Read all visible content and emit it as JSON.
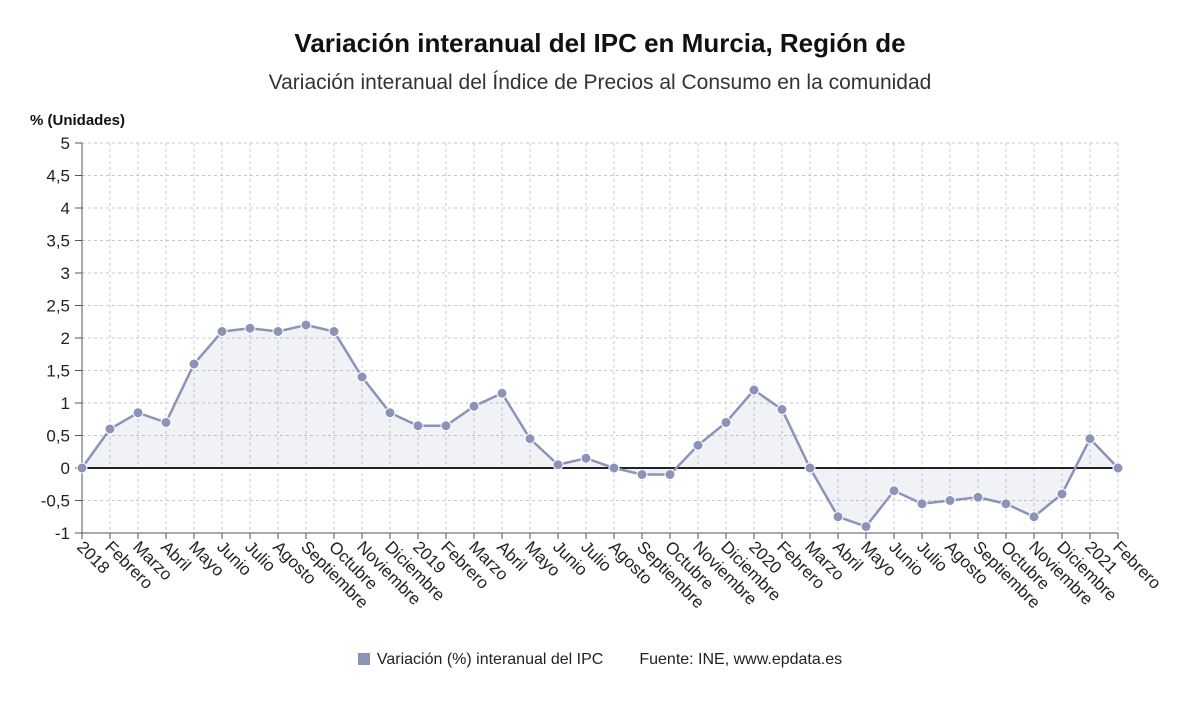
{
  "chart_data": {
    "type": "line",
    "title": "Variación interanual del IPC en Murcia, Región de",
    "subtitle": "Variación interanual del Índice de Precios al Consumo en la comunidad",
    "ylabel": "% (Unidades)",
    "xlabel": "",
    "ylim": [
      -1,
      5
    ],
    "yticks": [
      5,
      4.5,
      4,
      3.5,
      3,
      2.5,
      2,
      1.5,
      1,
      0.5,
      0,
      -0.5,
      -1
    ],
    "ytick_labels": [
      "5",
      "4,5",
      "4",
      "3,5",
      "3",
      "2,5",
      "2",
      "1,5",
      "1",
      "0,5",
      "0",
      "-0,5",
      "-1"
    ],
    "grid": true,
    "legend_position": "bottom",
    "categories": [
      "2018",
      "Febrero",
      "Marzo",
      "Abril",
      "Mayo",
      "Junio",
      "Julio",
      "Agosto",
      "Septiembre",
      "Octubre",
      "Noviembre",
      "Diciembre",
      "2019",
      "Febrero",
      "Marzo",
      "Abril",
      "Mayo",
      "Junio",
      "Julio",
      "Agosto",
      "Septiembre",
      "Octubre",
      "Noviembre",
      "Diciembre",
      "2020",
      "Febrero",
      "Marzo",
      "Abril",
      "Mayo",
      "Junio",
      "Julio",
      "Agosto",
      "Septiembre",
      "Octubre",
      "Noviembre",
      "Diciembre",
      "2021",
      "Febrero"
    ],
    "series": [
      {
        "name": "Variación (%) interanual del IPC",
        "color": "#8c93b8",
        "values": [
          0.0,
          0.6,
          0.85,
          0.7,
          1.6,
          2.1,
          2.15,
          2.1,
          2.2,
          2.1,
          1.4,
          0.85,
          0.65,
          0.65,
          0.95,
          1.15,
          0.45,
          0.05,
          0.15,
          0.0,
          -0.1,
          -0.1,
          0.35,
          0.7,
          1.2,
          0.9,
          0.0,
          -0.75,
          -0.9,
          -0.35,
          -0.55,
          -0.5,
          -0.45,
          -0.55,
          -0.75,
          -0.4,
          0.45,
          0.0
        ]
      }
    ]
  },
  "legend": {
    "series_label": "Variación (%) interanual del IPC",
    "source": "Fuente: INE, www.epdata.es"
  }
}
